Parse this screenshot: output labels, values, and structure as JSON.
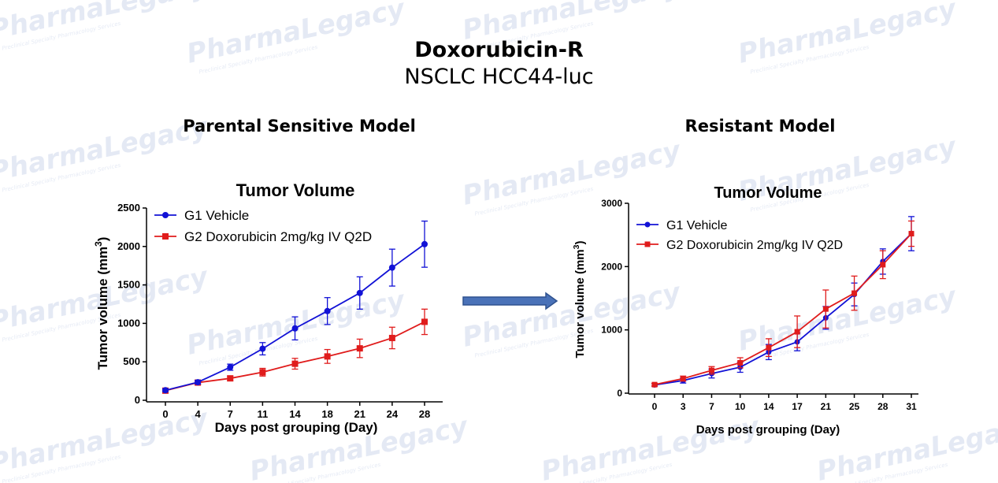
{
  "header": {
    "title": "Doxorubicin-R",
    "subtitle": "NSCLC HCC44-luc"
  },
  "sections": {
    "left": "Parental Sensitive Model",
    "right": "Resistant Model"
  },
  "watermark": {
    "brand": "PharmaLegacy",
    "tagline": "Preclinical Specialty Pharmacology Services"
  },
  "colors": {
    "vehicle": "#1212d6",
    "treatment": "#e01c1c",
    "arrow": "#4a72b8"
  },
  "chart_data": [
    {
      "type": "line",
      "title": "Tumor Volume",
      "xlabel": "Days post grouping (Day)",
      "ylabel": "Tumor volume (mm3)",
      "categories": [
        "0",
        "4",
        "7",
        "11",
        "14",
        "18",
        "21",
        "24",
        "28"
      ],
      "ylim": [
        0,
        2500
      ],
      "yticks": [
        0,
        500,
        1000,
        1500,
        2000,
        2500
      ],
      "legend": "top-left",
      "series": [
        {
          "name": "G1 Vehicle",
          "marker": "circle",
          "values": [
            130,
            235,
            430,
            670,
            935,
            1160,
            1395,
            1725,
            2030
          ],
          "errors": [
            20,
            25,
            40,
            80,
            150,
            175,
            210,
            240,
            300
          ]
        },
        {
          "name": "G2 Doxorubicin 2mg/kg IV Q2D",
          "marker": "square",
          "values": [
            125,
            230,
            285,
            365,
            475,
            570,
            675,
            810,
            1020
          ],
          "errors": [
            15,
            20,
            30,
            50,
            70,
            90,
            120,
            140,
            165
          ]
        }
      ]
    },
    {
      "type": "line",
      "title": "Tumor Volume",
      "xlabel": "Days post grouping (Day)",
      "ylabel": "Tumor volume (mm3)",
      "categories": [
        "0",
        "3",
        "7",
        "10",
        "14",
        "17",
        "21",
        "25",
        "28",
        "31"
      ],
      "ylim": [
        0,
        3000
      ],
      "yticks": [
        0,
        1000,
        2000,
        3000
      ],
      "legend": "top-left",
      "series": [
        {
          "name": "G1 Vehicle",
          "marker": "circle",
          "values": [
            130,
            200,
            310,
            410,
            650,
            810,
            1190,
            1560,
            2080,
            2520
          ],
          "errors": [
            20,
            40,
            70,
            80,
            120,
            140,
            180,
            180,
            200,
            270
          ]
        },
        {
          "name": "G2 Doxorubicin 2mg/kg IV Q2D",
          "marker": "square",
          "values": [
            135,
            230,
            360,
            480,
            720,
            970,
            1330,
            1580,
            2030,
            2520
          ],
          "errors": [
            20,
            40,
            60,
            80,
            140,
            250,
            300,
            270,
            220,
            200
          ]
        }
      ]
    }
  ]
}
